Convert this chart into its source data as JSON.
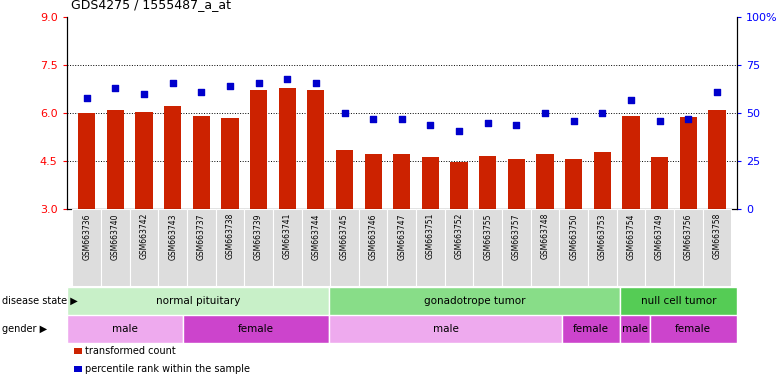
{
  "title": "GDS4275 / 1555487_a_at",
  "samples": [
    "GSM663736",
    "GSM663740",
    "GSM663742",
    "GSM663743",
    "GSM663737",
    "GSM663738",
    "GSM663739",
    "GSM663741",
    "GSM663744",
    "GSM663745",
    "GSM663746",
    "GSM663747",
    "GSM663751",
    "GSM663752",
    "GSM663755",
    "GSM663757",
    "GSM663748",
    "GSM663750",
    "GSM663753",
    "GSM663754",
    "GSM663749",
    "GSM663756",
    "GSM663758"
  ],
  "bar_values": [
    6.0,
    6.1,
    6.05,
    6.22,
    5.92,
    5.85,
    6.72,
    6.78,
    6.72,
    4.85,
    4.72,
    4.73,
    4.62,
    4.47,
    4.65,
    4.57,
    4.72,
    4.57,
    4.8,
    5.9,
    4.62,
    5.87,
    6.1
  ],
  "percentile_values": [
    58,
    63,
    60,
    66,
    61,
    64,
    66,
    68,
    66,
    50,
    47,
    47,
    44,
    41,
    45,
    44,
    50,
    46,
    50,
    57,
    46,
    47,
    61
  ],
  "ylim_left": [
    3,
    9
  ],
  "ylim_right": [
    0,
    100
  ],
  "yticks_left": [
    3,
    4.5,
    6.0,
    7.5,
    9
  ],
  "yticks_right": [
    0,
    25,
    50,
    75,
    100
  ],
  "bar_color": "#CC2200",
  "dot_color": "#0000CC",
  "grid_lines": [
    4.5,
    6.0,
    7.5
  ],
  "disease_state_groups": [
    {
      "label": "normal pituitary",
      "start": 0,
      "end": 9,
      "color": "#C8F0C8"
    },
    {
      "label": "gonadotrope tumor",
      "start": 9,
      "end": 19,
      "color": "#88DD88"
    },
    {
      "label": "null cell tumor",
      "start": 19,
      "end": 23,
      "color": "#55CC55"
    }
  ],
  "gender_groups": [
    {
      "label": "male",
      "start": 0,
      "end": 4,
      "color": "#EEAAEE"
    },
    {
      "label": "female",
      "start": 4,
      "end": 9,
      "color": "#CC44CC"
    },
    {
      "label": "male",
      "start": 9,
      "end": 17,
      "color": "#EEAAEE"
    },
    {
      "label": "female",
      "start": 17,
      "end": 19,
      "color": "#CC44CC"
    },
    {
      "label": "male",
      "start": 19,
      "end": 20,
      "color": "#CC44CC"
    },
    {
      "label": "female",
      "start": 20,
      "end": 23,
      "color": "#CC44CC"
    }
  ],
  "legend_items": [
    {
      "label": "transformed count",
      "color": "#CC2200"
    },
    {
      "label": "percentile rank within the sample",
      "color": "#0000CC"
    }
  ],
  "tick_bg_color": "#DDDDDD",
  "tick_sep_color": "#FFFFFF"
}
